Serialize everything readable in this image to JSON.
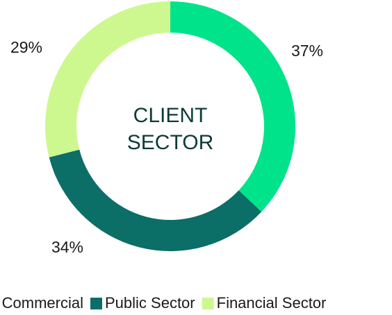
{
  "chart_data": {
    "type": "donut",
    "center_label": [
      "CLIENT",
      "SECTOR"
    ],
    "categories": [
      "Commercial",
      "Public Sector",
      "Financial Sector"
    ],
    "values": [
      37,
      34,
      29
    ],
    "value_labels": [
      "37%",
      "34%",
      "29%"
    ],
    "colors": [
      "#00e38b",
      "#0b6e67",
      "#cdf88f"
    ]
  }
}
